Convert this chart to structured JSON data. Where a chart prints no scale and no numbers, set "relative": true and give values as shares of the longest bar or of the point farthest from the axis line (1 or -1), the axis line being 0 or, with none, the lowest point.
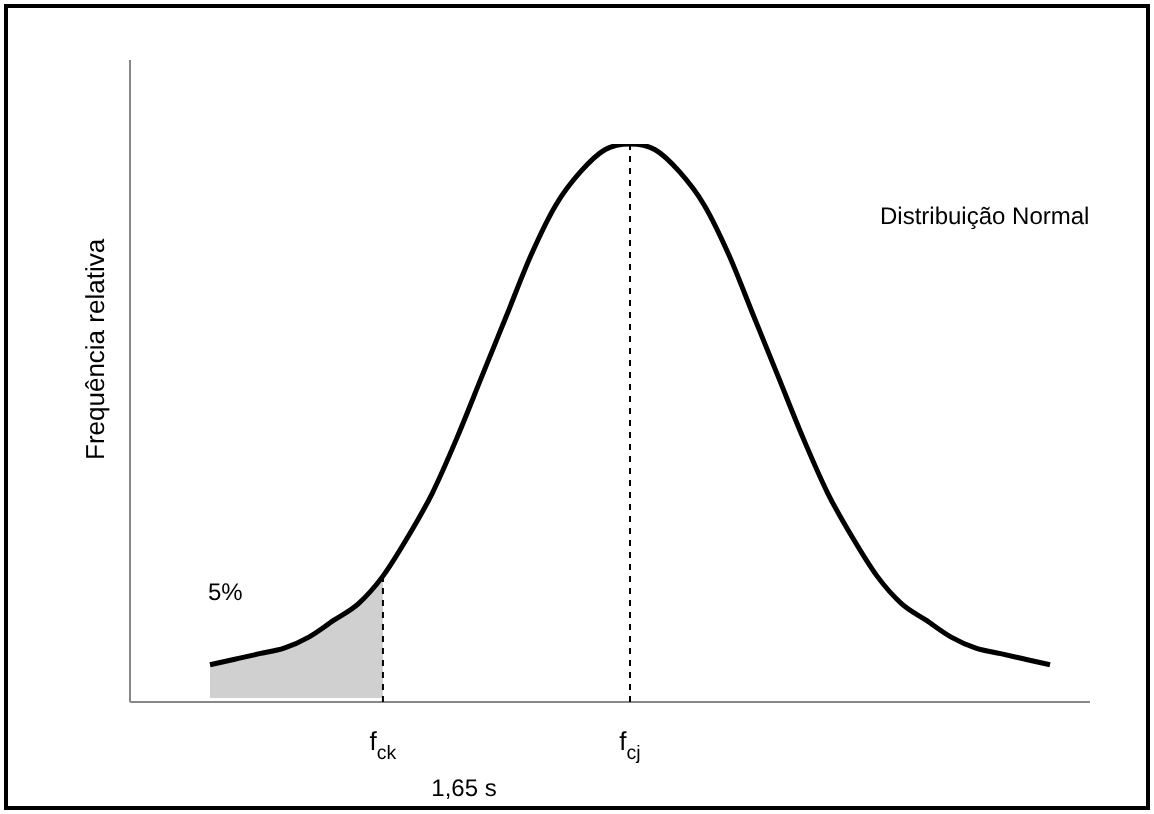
{
  "chart_data": {
    "type": "line",
    "relative": true,
    "ylabel": "Frequência relativa",
    "categories": [
      null,
      null,
      null,
      null,
      null,
      null,
      null,
      "f$_{ck}$",
      null,
      null,
      null,
      null,
      null,
      null,
      null,
      null,
      null,
      "f$_{cj}$",
      null,
      null,
      null,
      null,
      null,
      null,
      null,
      null,
      null,
      null,
      null,
      null,
      null,
      null,
      null,
      null,
      null
    ],
    "series": [
      {
        "color": "#000000",
        "values": [
          0.06,
          0.07,
          0.08,
          0.09,
          0.11,
          0.14,
          0.17,
          0.22,
          0.29,
          0.37,
          0.47,
          0.58,
          0.69,
          0.8,
          0.89,
          0.95,
          0.99,
          1.0,
          0.99,
          0.95,
          0.89,
          0.8,
          0.69,
          0.58,
          0.47,
          0.37,
          0.29,
          0.22,
          0.17,
          0.14,
          0.11,
          0.09,
          0.08,
          0.07,
          0.06
        ]
      },
      {
        "type": "area",
        "color": "#b0b0b0",
        "values": [
          0.06,
          0.07,
          0.08,
          0.09,
          0.11,
          0.14,
          0.17,
          0.22,
          null,
          null,
          null,
          null,
          null,
          null,
          null,
          null,
          null,
          null,
          null,
          null,
          null,
          null,
          null,
          null,
          null,
          null,
          null,
          null,
          null,
          null,
          null,
          null,
          null,
          null,
          null
        ]
      }
    ],
    "ref_lines": [
      {
        "axis": "x",
        "value": "f$_{ck}$",
        "line_style": "dashed",
        "color": "#000000"
      },
      {
        "axis": "x",
        "value": "f$_{cj}$",
        "line_style": "dashed",
        "color": "#000000"
      }
    ],
    "annotations": [
      "Distribuição Normal",
      "5%",
      "1,65 s"
    ],
    "legend": false
  }
}
